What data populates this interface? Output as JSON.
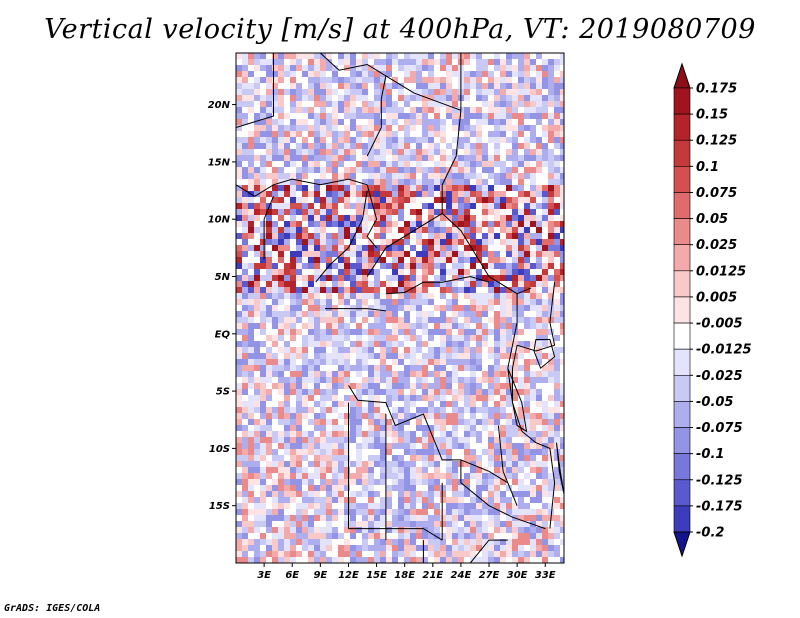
{
  "title": "Vertical velocity [m/s] at 400hPa, VT: 2019080709",
  "credit": "GrADS: IGES/COLA",
  "map": {
    "lon_range": [
      0,
      35
    ],
    "lat_range": [
      -20,
      24.5
    ],
    "lat_ticks": [
      {
        "value": 20,
        "label": "20N"
      },
      {
        "value": 15,
        "label": "15N"
      },
      {
        "value": 10,
        "label": "10N"
      },
      {
        "value": 5,
        "label": "5N"
      },
      {
        "value": 0,
        "label": "EQ"
      },
      {
        "value": -5,
        "label": "5S"
      },
      {
        "value": -10,
        "label": "10S"
      },
      {
        "value": -15,
        "label": "15S"
      }
    ],
    "lon_ticks": [
      {
        "value": 3,
        "label": "3E"
      },
      {
        "value": 6,
        "label": "6E"
      },
      {
        "value": 9,
        "label": "9E"
      },
      {
        "value": 12,
        "label": "12E"
      },
      {
        "value": 15,
        "label": "15E"
      },
      {
        "value": 18,
        "label": "18E"
      },
      {
        "value": 21,
        "label": "21E"
      },
      {
        "value": 24,
        "label": "24E"
      },
      {
        "value": 27,
        "label": "27E"
      },
      {
        "value": 30,
        "label": "30E"
      },
      {
        "value": 33,
        "label": "33E"
      }
    ]
  },
  "colorbar": {
    "levels": [
      {
        "label": "0.175",
        "color": "#a0141e"
      },
      {
        "label": "0.15",
        "color": "#b4232a"
      },
      {
        "label": "0.125",
        "color": "#c43a3a"
      },
      {
        "label": "0.1",
        "color": "#d45050"
      },
      {
        "label": "0.075",
        "color": "#e06b6b"
      },
      {
        "label": "0.05",
        "color": "#eb8a8a"
      },
      {
        "label": "0.025",
        "color": "#f4aaaa"
      },
      {
        "label": "0.0125",
        "color": "#f9c8c8"
      },
      {
        "label": "0.005",
        "color": "#fde3e3"
      },
      {
        "label": "-0.005",
        "color": "#ffffff"
      },
      {
        "label": "-0.0125",
        "color": "#e3e3fb"
      },
      {
        "label": "-0.025",
        "color": "#c9c9f5"
      },
      {
        "label": "-0.05",
        "color": "#aeaeee"
      },
      {
        "label": "-0.075",
        "color": "#9494e6"
      },
      {
        "label": "-0.1",
        "color": "#7878db"
      },
      {
        "label": "-0.125",
        "color": "#5a5ace"
      },
      {
        "label": "-0.175",
        "color": "#3c3cbc"
      },
      {
        "label": "-0.2",
        "color": "#2222a8"
      }
    ],
    "top_arrow_color": "#8c0f18",
    "bottom_arrow_color": "#14148c"
  }
}
